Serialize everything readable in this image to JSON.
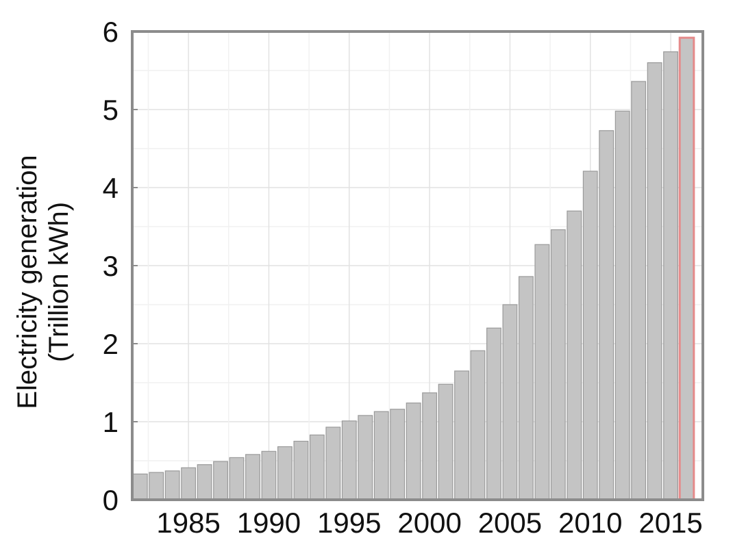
{
  "chart_data": {
    "type": "bar",
    "title": "",
    "xlabel": "",
    "ylabel": [
      "Electricity generation",
      "(Trillion kWh)"
    ],
    "ylim": [
      0,
      6
    ],
    "xlim": [
      1981.5,
      2017
    ],
    "x": [
      1982,
      1983,
      1984,
      1985,
      1986,
      1987,
      1988,
      1989,
      1990,
      1991,
      1992,
      1993,
      1994,
      1995,
      1996,
      1997,
      1998,
      1999,
      2000,
      2001,
      2002,
      2003,
      2004,
      2005,
      2006,
      2007,
      2008,
      2009,
      2010,
      2011,
      2012,
      2013,
      2014,
      2015,
      2016
    ],
    "values": [
      0.33,
      0.35,
      0.37,
      0.41,
      0.45,
      0.49,
      0.54,
      0.58,
      0.62,
      0.68,
      0.75,
      0.83,
      0.93,
      1.01,
      1.08,
      1.13,
      1.16,
      1.24,
      1.37,
      1.48,
      1.65,
      1.91,
      2.2,
      2.5,
      2.86,
      3.27,
      3.46,
      3.7,
      4.21,
      4.73,
      4.98,
      5.36,
      5.6,
      5.74,
      5.92
    ],
    "highlight_x": 2016,
    "x_ticks": [
      1985,
      1990,
      1995,
      2000,
      2005,
      2010,
      2015
    ],
    "x_tick_labels": [
      "1985",
      "1990",
      "1995",
      "2000",
      "2005",
      "2010",
      "2015"
    ],
    "y_ticks": [
      0,
      1,
      2,
      3,
      4,
      5,
      6
    ],
    "y_tick_labels": [
      "0",
      "1",
      "2",
      "3",
      "4",
      "5",
      "6"
    ],
    "grid": true,
    "legend": "none",
    "colors": {
      "bar_fill": "#c4c4c4",
      "bar_stroke": "#9a9a9a",
      "highlight_stroke": "#e58a8a",
      "grid_major": "#e2e2e2",
      "grid_minor": "#f1f1f1",
      "frame": "#8c8c8c",
      "text": "#111111"
    }
  }
}
